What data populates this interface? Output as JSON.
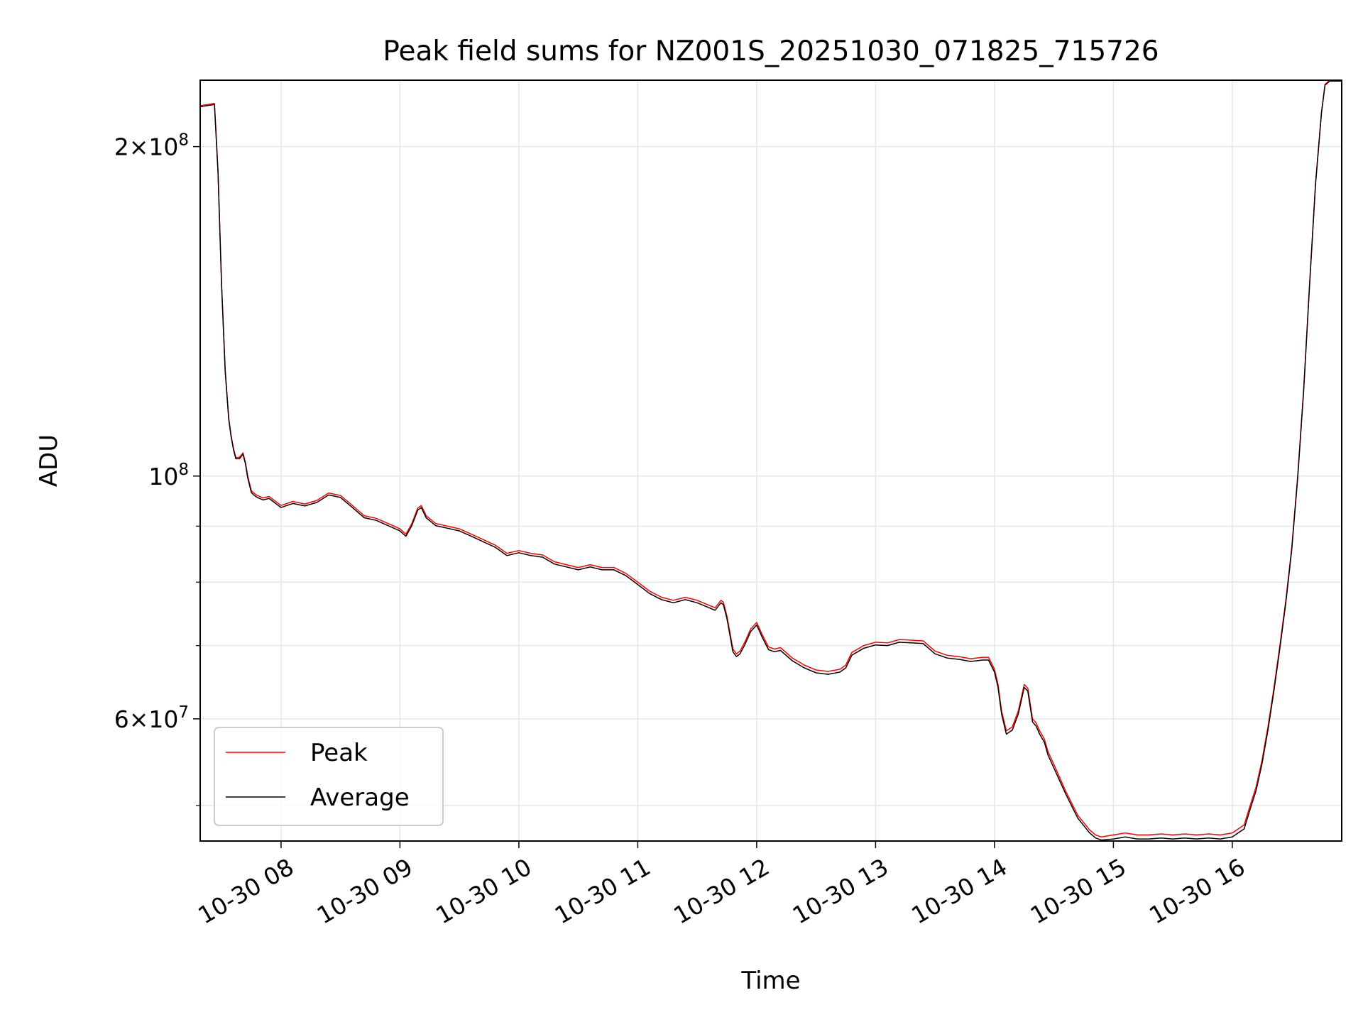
{
  "chart_data": {
    "type": "line",
    "title": "Peak field sums for NZ001S_20251030_071825_715726",
    "xlabel": "Time",
    "ylabel": "ADU",
    "x_unit": "hours (2025-10-30, local clock)",
    "xlim": [
      7.32,
      16.92
    ],
    "ylim": [
      46400000.0,
      230000000.0
    ],
    "yscale": "log",
    "grid": true,
    "legend_position": "lower-left",
    "x_ticks": [
      {
        "value": 8,
        "label": "10-30 08"
      },
      {
        "value": 9,
        "label": "10-30 09"
      },
      {
        "value": 10,
        "label": "10-30 10"
      },
      {
        "value": 11,
        "label": "10-30 11"
      },
      {
        "value": 12,
        "label": "10-30 12"
      },
      {
        "value": 13,
        "label": "10-30 13"
      },
      {
        "value": 14,
        "label": "10-30 14"
      },
      {
        "value": 15,
        "label": "10-30 15"
      },
      {
        "value": 16,
        "label": "10-30 16"
      }
    ],
    "y_ticks": [
      {
        "value": 60000000,
        "base": "6",
        "exp": "7"
      },
      {
        "value": 100000000,
        "base": "",
        "exp": "8"
      },
      {
        "value": 200000000,
        "base": "2",
        "exp": "8"
      }
    ],
    "y_minor_ticks": [
      50000000,
      70000000,
      80000000,
      90000000
    ],
    "series": [
      {
        "name": "Peak",
        "color": "#ff0000",
        "x": [
          7.32,
          7.44,
          7.47,
          7.5,
          7.53,
          7.56,
          7.58,
          7.6,
          7.62,
          7.65,
          7.68,
          7.7,
          7.72,
          7.74,
          7.75,
          7.77,
          7.8,
          7.85,
          7.9,
          8.0,
          8.1,
          8.2,
          8.3,
          8.4,
          8.5,
          8.55,
          8.6,
          8.7,
          8.8,
          8.9,
          9.0,
          9.05,
          9.1,
          9.15,
          9.18,
          9.22,
          9.3,
          9.4,
          9.5,
          9.6,
          9.7,
          9.8,
          9.9,
          10.0,
          10.1,
          10.2,
          10.3,
          10.4,
          10.5,
          10.6,
          10.7,
          10.8,
          10.9,
          11.0,
          11.1,
          11.2,
          11.3,
          11.4,
          11.5,
          11.6,
          11.65,
          11.7,
          11.72,
          11.75,
          11.8,
          11.83,
          11.86,
          11.9,
          11.95,
          12.0,
          12.05,
          12.1,
          12.15,
          12.2,
          12.3,
          12.4,
          12.5,
          12.6,
          12.7,
          12.75,
          12.8,
          12.9,
          13.0,
          13.1,
          13.2,
          13.3,
          13.4,
          13.5,
          13.6,
          13.7,
          13.8,
          13.9,
          13.95,
          14.0,
          14.03,
          14.06,
          14.1,
          14.15,
          14.2,
          14.25,
          14.28,
          14.32,
          14.35,
          14.38,
          14.42,
          14.45,
          14.5,
          14.6,
          14.7,
          14.8,
          14.85,
          14.9,
          15.0,
          15.1,
          15.2,
          15.3,
          15.4,
          15.5,
          15.6,
          15.7,
          15.8,
          15.9,
          16.0,
          16.1,
          16.15,
          16.2,
          16.25,
          16.3,
          16.35,
          16.4,
          16.45,
          16.5,
          16.55,
          16.6,
          16.65,
          16.7,
          16.75,
          16.78,
          16.82,
          16.92
        ],
        "y": [
          218000000,
          219000000,
          190000000,
          150000000,
          125000000,
          113000000,
          109000000,
          106000000,
          104000000,
          104000000,
          105000000,
          103000000,
          100000000,
          98000000,
          97000000,
          96500000,
          96000000,
          95500000,
          95800000,
          94000000,
          94800000,
          94300000,
          95000000,
          96500000,
          96000000,
          95000000,
          94000000,
          92000000,
          91500000,
          90500000,
          89500000,
          88500000,
          90500000,
          93500000,
          94000000,
          92000000,
          90500000,
          90000000,
          89500000,
          88500000,
          87500000,
          86500000,
          85000000,
          85500000,
          85000000,
          84700000,
          83500000,
          83000000,
          82500000,
          83000000,
          82500000,
          82500000,
          81500000,
          80000000,
          78500000,
          77500000,
          77000000,
          77500000,
          77000000,
          76200000,
          75800000,
          77000000,
          76700000,
          74500000,
          69500000,
          68800000,
          69200000,
          70500000,
          72500000,
          73500000,
          71500000,
          69800000,
          69500000,
          69700000,
          68200000,
          67200000,
          66500000,
          66300000,
          66600000,
          67200000,
          69000000,
          70000000,
          70500000,
          70400000,
          70900000,
          70800000,
          70700000,
          69200000,
          68600000,
          68400000,
          68100000,
          68300000,
          68300000,
          66600000,
          64500000,
          61000000,
          58500000,
          59000000,
          61000000,
          64500000,
          64000000,
          60000000,
          59500000,
          58500000,
          57500000,
          56000000,
          54500000,
          51500000,
          49000000,
          47500000,
          47000000,
          46800000,
          47000000,
          47200000,
          47000000,
          47000000,
          47100000,
          47000000,
          47100000,
          47000000,
          47100000,
          47000000,
          47200000,
          48000000,
          50000000,
          52000000,
          55000000,
          59000000,
          64000000,
          70000000,
          77000000,
          86000000,
          100000000,
          120000000,
          150000000,
          185000000,
          215000000,
          228000000,
          230000000,
          230000000
        ]
      },
      {
        "name": "Average",
        "color": "#000000",
        "x": [
          7.32,
          7.44,
          7.47,
          7.5,
          7.53,
          7.56,
          7.58,
          7.6,
          7.62,
          7.65,
          7.68,
          7.7,
          7.72,
          7.74,
          7.75,
          7.77,
          7.8,
          7.85,
          7.9,
          8.0,
          8.1,
          8.2,
          8.3,
          8.4,
          8.5,
          8.55,
          8.6,
          8.7,
          8.8,
          8.9,
          9.0,
          9.05,
          9.1,
          9.15,
          9.18,
          9.22,
          9.3,
          9.4,
          9.5,
          9.6,
          9.7,
          9.8,
          9.9,
          10.0,
          10.1,
          10.2,
          10.3,
          10.4,
          10.5,
          10.6,
          10.7,
          10.8,
          10.9,
          11.0,
          11.1,
          11.2,
          11.3,
          11.4,
          11.5,
          11.6,
          11.65,
          11.7,
          11.72,
          11.75,
          11.8,
          11.83,
          11.86,
          11.9,
          11.95,
          12.0,
          12.05,
          12.1,
          12.15,
          12.2,
          12.3,
          12.4,
          12.5,
          12.6,
          12.7,
          12.75,
          12.8,
          12.9,
          13.0,
          13.1,
          13.2,
          13.3,
          13.4,
          13.5,
          13.6,
          13.7,
          13.8,
          13.9,
          13.95,
          14.0,
          14.03,
          14.06,
          14.1,
          14.15,
          14.2,
          14.25,
          14.28,
          14.32,
          14.35,
          14.38,
          14.42,
          14.45,
          14.5,
          14.6,
          14.7,
          14.8,
          14.85,
          14.9,
          15.0,
          15.1,
          15.2,
          15.3,
          15.4,
          15.5,
          15.6,
          15.7,
          15.8,
          15.9,
          16.0,
          16.1,
          16.15,
          16.2,
          16.25,
          16.3,
          16.35,
          16.4,
          16.45,
          16.5,
          16.55,
          16.6,
          16.65,
          16.7,
          16.75,
          16.78,
          16.82,
          16.92
        ],
        "y": [
          217500000,
          218500000,
          189500000,
          149500000,
          124800000,
          112700000,
          108700000,
          105700000,
          103700000,
          103700000,
          104700000,
          102700000,
          99600000,
          97600000,
          96600000,
          96100000,
          95600000,
          95100000,
          95400000,
          93600000,
          94400000,
          93900000,
          94600000,
          96100000,
          95600000,
          94600000,
          93600000,
          91600000,
          91100000,
          90100000,
          89100000,
          88100000,
          90100000,
          93100000,
          93600000,
          91600000,
          90100000,
          89600000,
          89100000,
          88100000,
          87100000,
          86100000,
          84600000,
          85100000,
          84600000,
          84300000,
          83100000,
          82600000,
          82100000,
          82600000,
          82100000,
          82100000,
          81100000,
          79600000,
          78100000,
          77100000,
          76600000,
          77100000,
          76600000,
          75800000,
          75400000,
          76600000,
          76300000,
          74100000,
          69100000,
          68400000,
          68800000,
          70100000,
          72100000,
          73100000,
          71100000,
          69400000,
          69100000,
          69300000,
          67800000,
          66800000,
          66100000,
          65900000,
          66200000,
          66800000,
          68600000,
          69600000,
          70100000,
          70000000,
          70500000,
          70400000,
          70300000,
          68800000,
          68200000,
          68000000,
          67700000,
          67900000,
          67900000,
          66200000,
          64100000,
          60600000,
          58100000,
          58600000,
          60600000,
          64100000,
          63600000,
          59600000,
          59100000,
          58100000,
          57100000,
          55600000,
          54100000,
          51200000,
          48700000,
          47200000,
          46700000,
          46500000,
          46600000,
          46800000,
          46600000,
          46600000,
          46700000,
          46600000,
          46700000,
          46600000,
          46700000,
          46600000,
          46800000,
          47600000,
          49600000,
          51600000,
          54600000,
          58600000,
          63600000,
          69600000,
          76600000,
          85600000,
          99600000,
          119600000,
          149600000,
          184600000,
          214600000,
          227600000,
          229600000,
          229600000
        ]
      }
    ]
  }
}
